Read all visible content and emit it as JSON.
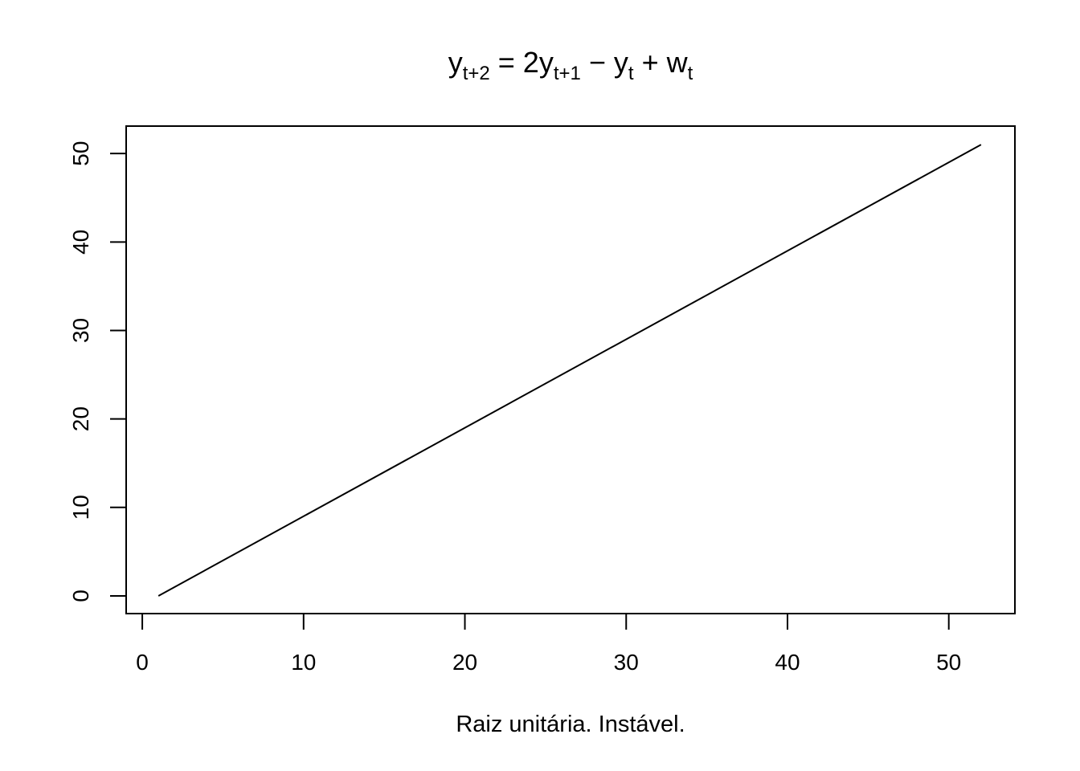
{
  "chart_data": {
    "type": "line",
    "title": {
      "parts": [
        {
          "text": "y",
          "sub": "t+2"
        },
        {
          "text": " = 2y",
          "sub": "t+1"
        },
        {
          "text": " − y",
          "sub": "t"
        },
        {
          "text": " + w",
          "sub": "t"
        }
      ]
    },
    "xlabel": "Raiz unitária. Instável.",
    "ylabel": "",
    "xlim": [
      -1,
      54.1
    ],
    "ylim": [
      -2,
      53.1
    ],
    "xticks": [
      0,
      10,
      20,
      30,
      40,
      50
    ],
    "yticks": [
      0,
      10,
      20,
      30,
      40,
      50
    ],
    "grid": false,
    "line_color": "#000000",
    "series": [
      {
        "x": [
          1,
          52
        ],
        "y": [
          0,
          51
        ]
      }
    ]
  }
}
